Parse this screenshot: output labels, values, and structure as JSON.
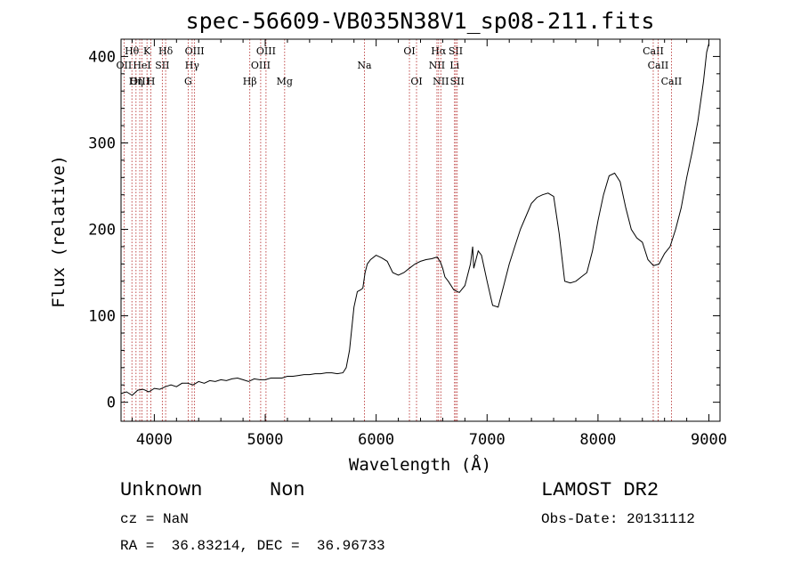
{
  "chart_data": {
    "type": "line",
    "title": "spec-56609-VB035N38V1_sp08-211.fits",
    "xlabel": "Wavelength (Å)",
    "ylabel": "Flux (relative)",
    "xlim": [
      3700,
      9100
    ],
    "ylim": [
      -22,
      420
    ],
    "xticks": [
      4000,
      5000,
      6000,
      7000,
      8000,
      9000
    ],
    "yticks": [
      0,
      100,
      200,
      300,
      400
    ],
    "grid": false,
    "series": [
      {
        "values_x": [
          3700,
          3750,
          3800,
          3850,
          3900,
          3950,
          4000,
          4050,
          4100,
          4150,
          4200,
          4250,
          4300,
          4350,
          4400,
          4450,
          4500,
          4550,
          4600,
          4650,
          4700,
          4750,
          4800,
          4850,
          4900,
          4950,
          5000,
          5050,
          5100,
          5150,
          5200,
          5250,
          5300,
          5350,
          5400,
          5450,
          5500,
          5550,
          5600,
          5650,
          5700,
          5730,
          5760,
          5800,
          5830,
          5860,
          5880,
          5900,
          5920,
          5950,
          6000,
          6050,
          6100,
          6150,
          6200,
          6250,
          6300,
          6350,
          6400,
          6450,
          6500,
          6550,
          6580,
          6600,
          6620,
          6650,
          6700,
          6750,
          6800,
          6850,
          6870,
          6880,
          6900,
          6920,
          6950,
          7000,
          7050,
          7100,
          7150,
          7200,
          7250,
          7300,
          7350,
          7400,
          7450,
          7500,
          7550,
          7600,
          7650,
          7700,
          7750,
          7800,
          7850,
          7900,
          7950,
          8000,
          8050,
          8100,
          8150,
          8200,
          8250,
          8300,
          8350,
          8400,
          8450,
          8500,
          8550,
          8600,
          8650,
          8700,
          8750,
          8800,
          8850,
          8900,
          8950,
          8980,
          9000
        ],
        "values_y": [
          10,
          12,
          8,
          14,
          15,
          12,
          16,
          15,
          18,
          20,
          18,
          22,
          22,
          20,
          24,
          22,
          25,
          24,
          26,
          25,
          27,
          28,
          26,
          24,
          27,
          26,
          26,
          28,
          28,
          28,
          30,
          30,
          31,
          32,
          32,
          33,
          33,
          34,
          34,
          33,
          34,
          40,
          60,
          110,
          128,
          130,
          132,
          150,
          160,
          165,
          170,
          167,
          163,
          150,
          147,
          150,
          155,
          160,
          163,
          165,
          166,
          168,
          162,
          155,
          145,
          140,
          130,
          127,
          135,
          160,
          180,
          155,
          165,
          175,
          170,
          140,
          112,
          110,
          135,
          160,
          180,
          200,
          215,
          230,
          237,
          240,
          242,
          238,
          195,
          140,
          138,
          140,
          145,
          150,
          175,
          210,
          240,
          262,
          265,
          255,
          225,
          200,
          190,
          185,
          165,
          158,
          160,
          172,
          180,
          200,
          225,
          260,
          290,
          325,
          370,
          405,
          415
        ]
      }
    ],
    "line_markers": [
      {
        "label": "OII",
        "x": 3727,
        "row": 2
      },
      {
        "label": "Hθ",
        "x": 3798,
        "row": 1
      },
      {
        "label": "OIII",
        "x": 3869,
        "row": 3
      },
      {
        "label": "HeI",
        "x": 3889,
        "row": 2
      },
      {
        "label": "Hη",
        "x": 3835,
        "row": 3
      },
      {
        "label": "K",
        "x": 3934,
        "row": 1
      },
      {
        "label": "H",
        "x": 3969,
        "row": 3
      },
      {
        "label": "SII",
        "x": 4072,
        "row": 2
      },
      {
        "label": "Hδ",
        "x": 4102,
        "row": 1
      },
      {
        "label": "OIII",
        "x": 4363,
        "row": 1
      },
      {
        "label": "Hγ",
        "x": 4341,
        "row": 2
      },
      {
        "label": "G",
        "x": 4305,
        "row": 3
      },
      {
        "label": "Hβ",
        "x": 4861,
        "row": 3
      },
      {
        "label": "OIII",
        "x": 4959,
        "row": 2
      },
      {
        "label": "OIII",
        "x": 5007,
        "row": 1
      },
      {
        "label": "Mg",
        "x": 5175,
        "row": 3
      },
      {
        "label": "Na",
        "x": 5894,
        "row": 2
      },
      {
        "label": "OI",
        "x": 6300,
        "row": 1
      },
      {
        "label": "OI",
        "x": 6364,
        "row": 3
      },
      {
        "label": "Hα",
        "x": 6563,
        "row": 1
      },
      {
        "label": "NII",
        "x": 6548,
        "row": 2
      },
      {
        "label": "NII",
        "x": 6583,
        "row": 3
      },
      {
        "label": "SII",
        "x": 6717,
        "row": 1
      },
      {
        "label": "Li",
        "x": 6707,
        "row": 2
      },
      {
        "label": "SII",
        "x": 6731,
        "row": 3
      },
      {
        "label": "CaII",
        "x": 8498,
        "row": 1
      },
      {
        "label": "CaII",
        "x": 8542,
        "row": 2
      },
      {
        "label": "CaII",
        "x": 8662,
        "row": 3
      }
    ]
  },
  "info": {
    "class_label": "Unknown",
    "subclass_label": "Non",
    "survey": "LAMOST DR2",
    "redshift": "cz = NaN",
    "obs_date": "Obs-Date: 20131112",
    "coords": "RA =  36.83214, DEC =  36.96733"
  }
}
